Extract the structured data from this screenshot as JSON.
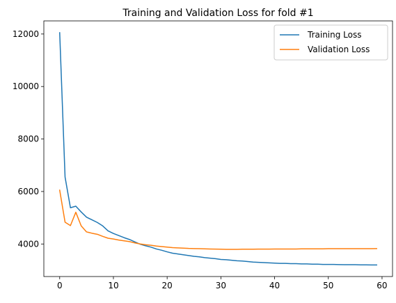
{
  "chart_data": {
    "type": "line",
    "title": "Training and Validation Loss for fold #1",
    "xlabel": "",
    "ylabel": "",
    "xlim": [
      -2.95,
      61.95
    ],
    "ylim": [
      2760,
      12500
    ],
    "xticks": [
      0,
      10,
      20,
      30,
      40,
      50,
      60
    ],
    "yticks": [
      4000,
      6000,
      8000,
      10000,
      12000
    ],
    "grid": false,
    "legend_position": "top-right",
    "series": [
      {
        "name": "Training Loss",
        "color": "#1f77b4",
        "x": [
          0,
          1,
          2,
          3,
          4,
          5,
          6,
          7,
          8,
          9,
          10,
          11,
          12,
          13,
          14,
          15,
          16,
          17,
          18,
          19,
          20,
          21,
          22,
          23,
          24,
          25,
          26,
          27,
          28,
          29,
          30,
          31,
          32,
          33,
          34,
          35,
          36,
          37,
          38,
          39,
          40,
          41,
          42,
          43,
          44,
          45,
          46,
          47,
          48,
          49,
          50,
          51,
          52,
          53,
          54,
          55,
          56,
          57,
          58,
          59
        ],
        "values": [
          12050,
          6550,
          5380,
          5440,
          5220,
          5020,
          4920,
          4820,
          4690,
          4500,
          4400,
          4320,
          4240,
          4170,
          4080,
          3990,
          3930,
          3880,
          3810,
          3760,
          3700,
          3650,
          3620,
          3590,
          3560,
          3530,
          3510,
          3480,
          3460,
          3440,
          3410,
          3400,
          3380,
          3360,
          3350,
          3330,
          3310,
          3300,
          3290,
          3280,
          3270,
          3260,
          3260,
          3250,
          3250,
          3240,
          3240,
          3230,
          3230,
          3220,
          3220,
          3220,
          3215,
          3210,
          3210,
          3210,
          3205,
          3205,
          3200,
          3200
        ]
      },
      {
        "name": "Validation Loss",
        "color": "#ff7f0e",
        "x": [
          0,
          1,
          2,
          3,
          4,
          5,
          6,
          7,
          8,
          9,
          10,
          11,
          12,
          13,
          14,
          15,
          16,
          17,
          18,
          19,
          20,
          21,
          22,
          23,
          24,
          25,
          26,
          27,
          28,
          29,
          30,
          31,
          32,
          33,
          34,
          35,
          36,
          37,
          38,
          39,
          40,
          41,
          42,
          43,
          44,
          45,
          46,
          47,
          48,
          49,
          50,
          51,
          52,
          53,
          54,
          55,
          56,
          57,
          58,
          59
        ],
        "values": [
          6050,
          4830,
          4700,
          5210,
          4690,
          4460,
          4410,
          4370,
          4290,
          4220,
          4190,
          4150,
          4120,
          4090,
          4040,
          4000,
          3970,
          3950,
          3920,
          3900,
          3880,
          3860,
          3850,
          3840,
          3830,
          3825,
          3820,
          3815,
          3810,
          3805,
          3800,
          3795,
          3795,
          3795,
          3800,
          3800,
          3800,
          3805,
          3805,
          3805,
          3810,
          3810,
          3810,
          3810,
          3810,
          3815,
          3815,
          3815,
          3815,
          3815,
          3820,
          3820,
          3820,
          3820,
          3820,
          3820,
          3820,
          3820,
          3820,
          3825
        ]
      }
    ]
  }
}
